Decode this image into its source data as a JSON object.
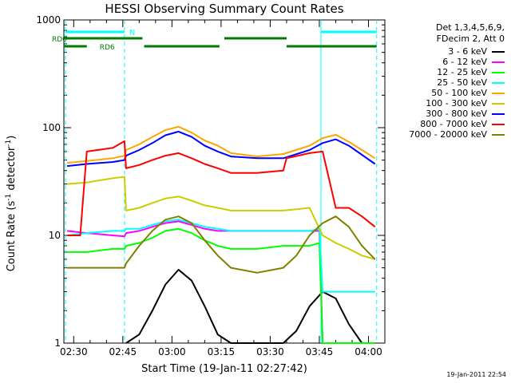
{
  "chart_data": {
    "type": "line",
    "title": "HESSI Observing Summary Count Rates",
    "xlabel": "Start Time (19-Jan-11 02:27:42)",
    "ylabel_parts": [
      "Count Rate (s",
      "-1",
      " detector",
      "-1",
      ")"
    ],
    "y_scale": "log",
    "ylim": [
      1,
      1000
    ],
    "y_ticks": [
      1,
      10,
      100,
      1000
    ],
    "y_tick_labels": [
      "1",
      "10",
      "100",
      "1000"
    ],
    "xlim_minutes": [
      -3,
      95
    ],
    "x_ticks_minutes": [
      0,
      15,
      30,
      45,
      60,
      75,
      90
    ],
    "x_tick_labels": [
      "02:30",
      "02:45",
      "03:00",
      "03:15",
      "03:30",
      "03:45",
      "04:00"
    ],
    "legend_header": [
      "Det 1,3,4,5,6,9,",
      "FDecim 2, Att 0"
    ],
    "footer": "19-Jan-2011 22:54",
    "dashed_marks_minutes": [
      -2.5,
      15.5,
      75.5,
      92.5
    ],
    "solid_marks_minutes": [
      75.5
    ],
    "flags": [
      {
        "label": "N",
        "color": "#00ffff",
        "row": 0,
        "segments": [
          [
            -2.5,
            15.5
          ],
          [
            75.5,
            92.5
          ]
        ]
      },
      {
        "label": "RD0",
        "color": "#007a00",
        "row": 1,
        "segments": [
          [
            -3,
            21.0
          ],
          [
            46,
            65
          ]
        ]
      },
      {
        "label": "RD6",
        "color": "#007a00",
        "row": 2,
        "segments": [
          [
            -3,
            4
          ],
          [
            21.5,
            44.5
          ],
          [
            65,
            92.5
          ]
        ]
      }
    ],
    "series": [
      {
        "name": "3 - 6 keV",
        "color": "#000000",
        "x": [
          16,
          20,
          24,
          28,
          32,
          36,
          40,
          44,
          48,
          56,
          64,
          68,
          72,
          76,
          80,
          84,
          88
        ],
        "y": [
          1.0,
          1.2,
          2.0,
          3.5,
          4.8,
          3.8,
          2.2,
          1.2,
          1.0,
          1.0,
          1.0,
          1.3,
          2.2,
          3.0,
          2.6,
          1.5,
          1.0
        ]
      },
      {
        "name": "6 - 12 keV",
        "color": "#ff00ff",
        "x": [
          -2,
          4,
          12,
          15.5,
          16,
          20,
          24,
          28,
          32,
          36,
          40,
          44,
          48,
          56,
          64,
          72,
          75,
          76,
          80,
          84,
          88,
          92
        ],
        "y": [
          11,
          10.5,
          10,
          9.8,
          10.5,
          11,
          12,
          13,
          13.5,
          12.5,
          11.5,
          11,
          11,
          11,
          11,
          11,
          11,
          1.0,
          1.0,
          1.0,
          1.0,
          1.0
        ]
      },
      {
        "name": "12 - 25 keV",
        "color": "#00ff00",
        "x": [
          -2,
          4,
          12,
          15.5,
          16,
          20,
          24,
          28,
          32,
          36,
          40,
          44,
          48,
          56,
          64,
          72,
          75,
          76,
          80,
          84,
          88,
          92
        ],
        "y": [
          7,
          7,
          7.5,
          7.5,
          8,
          8.5,
          9.5,
          11,
          11.5,
          10.5,
          9,
          8,
          7.5,
          7.5,
          8,
          8,
          8.5,
          1.0,
          1.0,
          1.0,
          1.0,
          1.0
        ]
      },
      {
        "name": "25 - 50 keV",
        "color": "#00ffff",
        "x": [
          -2,
          4,
          12,
          15.5,
          16,
          20,
          24,
          28,
          32,
          36,
          40,
          44,
          48,
          56,
          64,
          72,
          75,
          76,
          80,
          84,
          88,
          92
        ],
        "y": [
          10,
          10.5,
          11,
          11,
          11.5,
          11.5,
          12.5,
          13.5,
          14,
          13,
          12,
          11.5,
          11,
          11,
          11,
          11,
          11.5,
          3.0,
          3.0,
          3.0,
          3.0,
          3.0
        ]
      },
      {
        "name": "50 - 100 keV",
        "color": "#ffa500",
        "x": [
          -2,
          4,
          12,
          15.5,
          16,
          20,
          24,
          28,
          32,
          36,
          40,
          44,
          48,
          56,
          64,
          72,
          76,
          80,
          84,
          88,
          92
        ],
        "y": [
          47,
          49,
          52,
          55,
          62,
          70,
          82,
          95,
          102,
          90,
          76,
          68,
          58,
          54,
          57,
          68,
          80,
          86,
          74,
          62,
          52
        ]
      },
      {
        "name": "100 - 300 keV",
        "color": "#cccc00",
        "x": [
          -2,
          4,
          12,
          15.5,
          16,
          20,
          24,
          28,
          32,
          36,
          40,
          44,
          48,
          56,
          64,
          72,
          76,
          80,
          84,
          88,
          92
        ],
        "y": [
          30,
          31,
          34,
          35,
          17,
          18,
          20,
          22,
          23,
          21,
          19,
          18,
          17,
          17,
          17,
          18,
          10,
          8.5,
          7.5,
          6.5,
          6.0
        ]
      },
      {
        "name": "300 - 800 keV",
        "color": "#0000ff",
        "x": [
          -2,
          4,
          12,
          15.5,
          16,
          20,
          24,
          28,
          32,
          36,
          40,
          44,
          48,
          56,
          64,
          72,
          76,
          80,
          84,
          88,
          92
        ],
        "y": [
          44,
          46,
          48,
          50,
          55,
          62,
          72,
          85,
          92,
          82,
          68,
          60,
          54,
          52,
          52,
          62,
          72,
          78,
          68,
          56,
          46
        ]
      },
      {
        "name": "800 - 7000 keV",
        "color": "#ff0000",
        "x": [
          -2,
          2,
          4,
          12,
          15.5,
          16,
          20,
          24,
          28,
          32,
          36,
          40,
          44,
          48,
          56,
          64,
          65,
          72,
          76,
          80,
          84,
          88,
          92
        ],
        "y": [
          10,
          10,
          60,
          65,
          75,
          42,
          45,
          50,
          55,
          58,
          52,
          46,
          42,
          38,
          38,
          40,
          52,
          58,
          60,
          18,
          18,
          15,
          12
        ]
      },
      {
        "name": "7000 - 20000 keV",
        "color": "#808000",
        "x": [
          -2,
          4,
          12,
          15.5,
          16,
          20,
          24,
          28,
          32,
          36,
          40,
          44,
          48,
          56,
          64,
          68,
          72,
          76,
          80,
          84,
          88,
          92
        ],
        "y": [
          5,
          5,
          5,
          5,
          5.5,
          8,
          11,
          14,
          15,
          13,
          9,
          6.5,
          5,
          4.5,
          5,
          6.5,
          10,
          13,
          15,
          12,
          8,
          6
        ]
      }
    ]
  }
}
